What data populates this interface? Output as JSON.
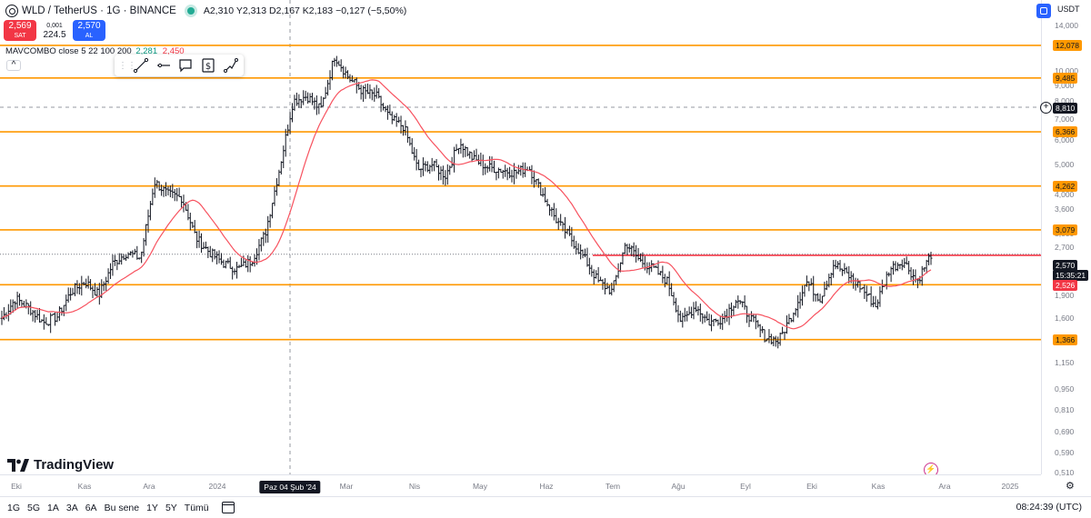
{
  "header": {
    "symbol": "WLD",
    "separator": "/",
    "pair": "TetherUS · 1G · BINANCE",
    "ohlc": "A2,310  Y2,313  D2,167  K2,183",
    "change": "−0,127 (−5,50%)"
  },
  "trade": {
    "sell_price": "2,569",
    "sell_label": "SAT",
    "spread_top": "0,001",
    "spread_value": "224.5",
    "buy_price": "2,570",
    "buy_label": "AL"
  },
  "indicator": {
    "name": "MAVCOMBO close 5 22 100 200",
    "value1": "2,281",
    "value2": "2,450"
  },
  "collapse_symbol": "^",
  "draw_tools": [
    "trend-line",
    "horizontal-line",
    "callout",
    "price-note",
    "path"
  ],
  "logo": {
    "text": "TradingView"
  },
  "price_axis": {
    "currency": "USDT",
    "ticks": [
      "14,000",
      "12,000",
      "10,000",
      "9,000",
      "8,000",
      "7,000",
      "6,000",
      "5,000",
      "4,000",
      "3,600",
      "3,000",
      "2,700",
      "2,200",
      "1,900",
      "1,600",
      "1,150",
      "0,950",
      "0,810",
      "0,690",
      "0,590",
      "0,510"
    ],
    "levels": [
      "12,078",
      "9,485",
      "6,366",
      "4,262",
      "3,079",
      "2,051",
      "1,366"
    ],
    "crosshair_price": "8,810",
    "last_price": "2,570",
    "countdown": "15:35:21",
    "ma_price": "2,526"
  },
  "time_axis": {
    "ticks": [
      "Eki",
      "Kas",
      "Ara",
      "2024",
      "Mar",
      "Nis",
      "May",
      "Haz",
      "Tem",
      "Ağu",
      "Eyl",
      "Eki",
      "Kas",
      "Ara",
      "2025"
    ],
    "crosshair_date": "Paz 04 Şub '24"
  },
  "bottom_bar": {
    "ranges": [
      "1G",
      "5G",
      "1A",
      "3A",
      "6A",
      "Bu sene",
      "1Y",
      "5Y",
      "Tümü"
    ],
    "clock": "08:24:39 (UTC)"
  },
  "colors": {
    "level_line": "#ff9800",
    "ma_line": "#f7525f",
    "resistance_line": "#f23645",
    "bars": "#131722",
    "sell": "#f23645",
    "buy": "#2962ff"
  },
  "chart_data": {
    "type": "ohlc-bar",
    "scale": "log",
    "ylim": [
      0.51,
      14.0
    ],
    "horizontal_levels": [
      12.078,
      9.485,
      6.366,
      4.262,
      3.079,
      2.051,
      1.366
    ],
    "resistance_line": 2.55,
    "last_price": 2.57,
    "moving_average_last": 2.526,
    "closes_path": [
      {
        "x": "Eki 2023",
        "y": 1.6
      },
      {
        "x": "Eki 2023",
        "y": 1.85
      },
      {
        "x": "Eki 2023",
        "y": 1.72
      },
      {
        "x": "Eki 2023",
        "y": 1.55
      },
      {
        "x": "Kas 2023",
        "y": 1.62
      },
      {
        "x": "Kas 2023",
        "y": 1.95
      },
      {
        "x": "Kas 2023",
        "y": 2.1
      },
      {
        "x": "Kas 2023",
        "y": 1.9
      },
      {
        "x": "Ara 2023",
        "y": 2.4
      },
      {
        "x": "Ara 2023",
        "y": 2.6
      },
      {
        "x": "Ara 2023",
        "y": 2.5
      },
      {
        "x": "Ara 2023",
        "y": 4.4
      },
      {
        "x": "Ara 2023",
        "y": 4.0
      },
      {
        "x": "2024",
        "y": 3.9
      },
      {
        "x": "2024",
        "y": 2.9
      },
      {
        "x": "2024",
        "y": 2.6
      },
      {
        "x": "Şub 2024",
        "y": 2.4
      },
      {
        "x": "Şub 2024",
        "y": 2.3
      },
      {
        "x": "Şub 2024",
        "y": 2.45
      },
      {
        "x": "Şub 2024",
        "y": 3.0
      },
      {
        "x": "Şub 2024",
        "y": 4.8
      },
      {
        "x": "Şub 2024",
        "y": 8.0
      },
      {
        "x": "Mar 2024",
        "y": 8.3
      },
      {
        "x": "Mar 2024",
        "y": 7.5
      },
      {
        "x": "Mar 2024",
        "y": 11.2
      },
      {
        "x": "Mar 2024",
        "y": 9.5
      },
      {
        "x": "Mar 2024",
        "y": 8.6
      },
      {
        "x": "Nis 2024",
        "y": 8.3
      },
      {
        "x": "Nis 2024",
        "y": 7.0
      },
      {
        "x": "Nis 2024",
        "y": 6.6
      },
      {
        "x": "Nis 2024",
        "y": 4.8
      },
      {
        "x": "Nis 2024",
        "y": 5.0
      },
      {
        "x": "May 2024",
        "y": 4.6
      },
      {
        "x": "May 2024",
        "y": 5.9
      },
      {
        "x": "May 2024",
        "y": 5.2
      },
      {
        "x": "May 2024",
        "y": 4.9
      },
      {
        "x": "Haz 2024",
        "y": 4.8
      },
      {
        "x": "Haz 2024",
        "y": 4.7
      },
      {
        "x": "Haz 2024",
        "y": 4.9
      },
      {
        "x": "Haz 2024",
        "y": 4.0
      },
      {
        "x": "Haz 2024",
        "y": 3.3
      },
      {
        "x": "Tem 2024",
        "y": 2.9
      },
      {
        "x": "Tem 2024",
        "y": 2.5
      },
      {
        "x": "Tem 2024",
        "y": 2.1
      },
      {
        "x": "Tem 2024",
        "y": 1.95
      },
      {
        "x": "Tem 2024",
        "y": 2.8
      },
      {
        "x": "Tem 2024",
        "y": 2.45
      },
      {
        "x": "Ağu 2024",
        "y": 2.3
      },
      {
        "x": "Ağu 2024",
        "y": 2.1
      },
      {
        "x": "Ağu 2024",
        "y": 1.55
      },
      {
        "x": "Ağu 2024",
        "y": 1.75
      },
      {
        "x": "Ağu 2024",
        "y": 1.55
      },
      {
        "x": "Eyl 2024",
        "y": 1.6
      },
      {
        "x": "Eyl 2024",
        "y": 1.85
      },
      {
        "x": "Eyl 2024",
        "y": 1.6
      },
      {
        "x": "Eyl 2024",
        "y": 1.4
      },
      {
        "x": "Eyl 2024",
        "y": 1.35
      },
      {
        "x": "Eki 2024",
        "y": 1.65
      },
      {
        "x": "Eki 2024",
        "y": 2.1
      },
      {
        "x": "Eki 2024",
        "y": 1.85
      },
      {
        "x": "Eki 2024",
        "y": 2.4
      },
      {
        "x": "Eki 2024",
        "y": 2.2
      },
      {
        "x": "Kas 2024",
        "y": 2.0
      },
      {
        "x": "Kas 2024",
        "y": 1.75
      },
      {
        "x": "Kas 2024",
        "y": 2.3
      },
      {
        "x": "Kas 2024",
        "y": 2.45
      },
      {
        "x": "Kas 2024",
        "y": 2.1
      },
      {
        "x": "Kas 2024",
        "y": 2.57
      }
    ]
  }
}
